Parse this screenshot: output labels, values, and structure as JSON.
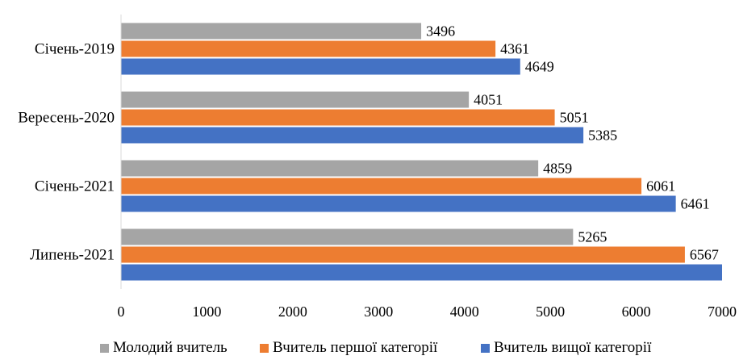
{
  "chart_data": {
    "type": "bar",
    "orientation": "horizontal",
    "categories": [
      "Січень-2019",
      "Вересень-2020",
      "Січень-2021",
      "Липень-2021"
    ],
    "series": [
      {
        "name": "Молодий вчитель",
        "color": "#a5a5a5",
        "values": [
          3496,
          4051,
          4859,
          5265
        ],
        "labels": [
          "3496",
          "4051",
          "4859",
          "5265"
        ]
      },
      {
        "name": "Вчитель першої категорії",
        "color": "#ed7d31",
        "values": [
          4361,
          5051,
          6061,
          6567
        ],
        "labels": [
          "4361",
          "5051",
          "6061",
          "6567"
        ]
      },
      {
        "name": "Вчитель вищої категорії",
        "color": "#4472c4",
        "values": [
          4649,
          5385,
          6461,
          7000
        ],
        "labels": [
          "4649",
          "5385",
          "6461",
          ""
        ]
      }
    ],
    "xlim": [
      0,
      7000
    ],
    "xticks": [
      "0",
      "1000",
      "2000",
      "3000",
      "4000",
      "5000",
      "6000",
      "7000"
    ],
    "grid": false,
    "legend_position": "bottom"
  }
}
